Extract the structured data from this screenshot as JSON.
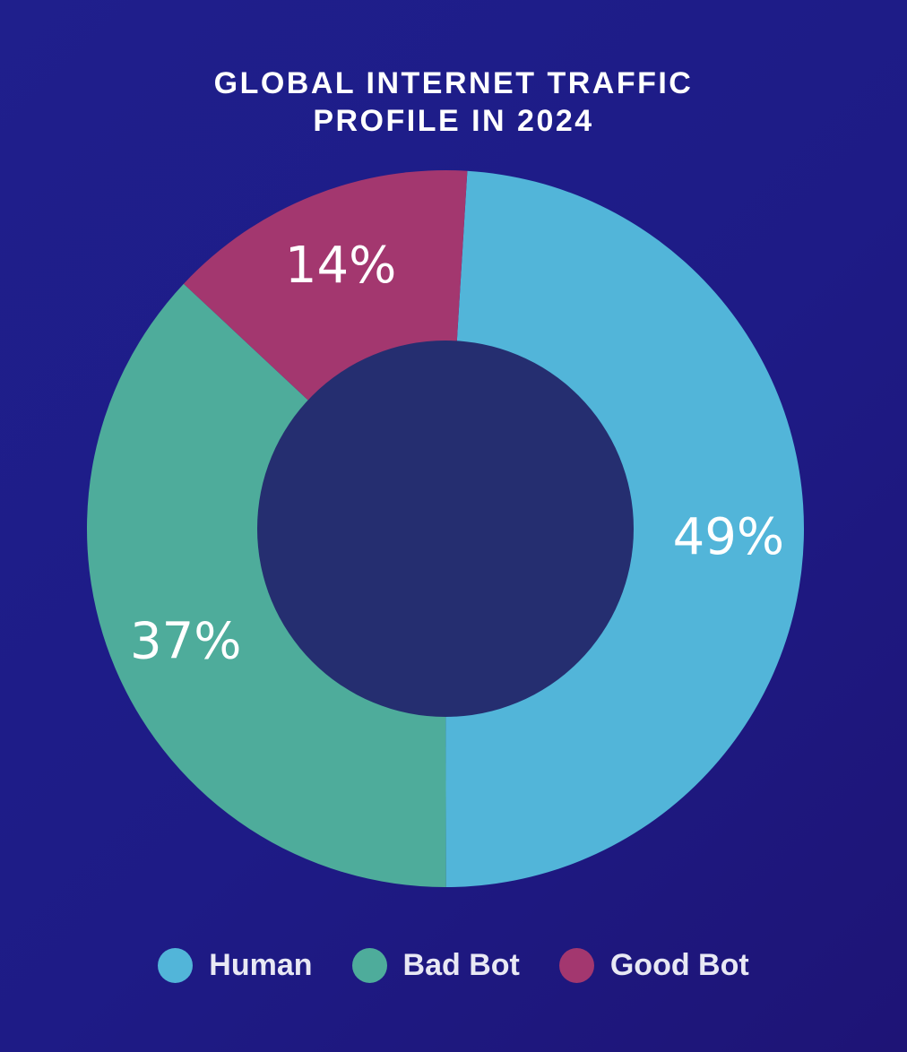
{
  "chart_data": {
    "type": "pie",
    "title": "GLOBAL INTERNET TRAFFIC\nPROFILE IN 2024",
    "title_lines": [
      "GLOBAL INTERNET TRAFFIC",
      "PROFILE IN 2024"
    ],
    "donut": true,
    "categories": [
      "Human",
      "Bad Bot",
      "Good Bot"
    ],
    "values": [
      49,
      37,
      14
    ],
    "value_labels": [
      "49%",
      "37%",
      "14%"
    ],
    "colors": [
      "#52b5d9",
      "#4eac9b",
      "#a3376f"
    ],
    "center_color": "#252e70",
    "legend_position": "bottom-center"
  }
}
